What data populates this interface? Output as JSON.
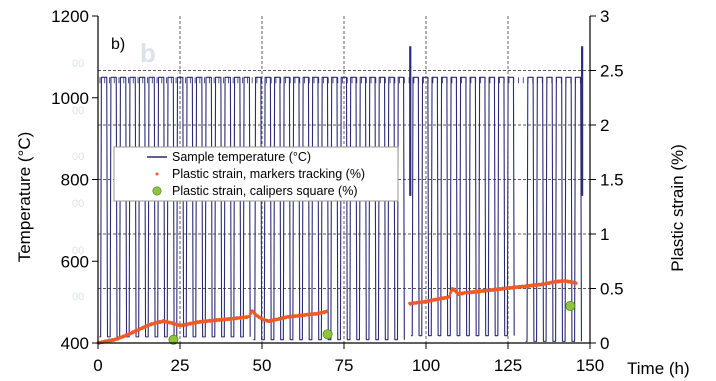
{
  "chart_data": {
    "type": "line",
    "panel_label": "b)",
    "background_ghost_text": [
      "b",
      "00",
      "00",
      "00",
      "00",
      "00",
      "00"
    ],
    "x_axis": {
      "label": "Time (h)",
      "range": [
        0,
        150
      ],
      "ticks": [
        "0",
        "25",
        "50",
        "75",
        "100",
        "125",
        "150"
      ]
    },
    "y_left": {
      "label": "Temperature (°C)",
      "range": [
        400,
        1200
      ],
      "ticks": [
        "400",
        "600",
        "800",
        "1000",
        "1200"
      ]
    },
    "y_right": {
      "label": "Plastic strain (%)",
      "range": [
        0,
        3
      ],
      "ticks": [
        "0",
        "0.5",
        "1",
        "1.5",
        "2",
        "2.5",
        "3"
      ]
    },
    "legend": {
      "placement": "middle-left",
      "entries": [
        {
          "label": "Sample temperature (°C)",
          "marker": "line",
          "color": "#2b2c75"
        },
        {
          "label": "Plastic strain, markers tracking (%)",
          "marker": "dot",
          "color": "#ef5a2b"
        },
        {
          "label": "Plastic strain, calipers square (%)",
          "marker": "circle",
          "color": "#8cc63f"
        }
      ]
    },
    "grid": {
      "x_major": [
        25,
        50,
        75,
        100,
        125
      ],
      "y_right_major": [
        0.5,
        1,
        1.5,
        2,
        2.5
      ],
      "style": "dashed"
    },
    "series": [
      {
        "name": "Sample temperature (°C)",
        "axis": "left",
        "color": "#2b2c75",
        "cycle_period_h": 2.9,
        "high_value": 1050,
        "low_values_by_segment": [
          {
            "x": [
              0,
              47
            ],
            "low": 415
          },
          {
            "x": [
              47,
              95
            ],
            "low": 408
          },
          {
            "x": [
              95,
              130
            ],
            "low": 418
          },
          {
            "x": [
              130,
              148
            ],
            "low": 404
          }
        ],
        "peaks": [
          {
            "x": 95.2,
            "value": 1126
          },
          {
            "x": 147.6,
            "value": 1126
          }
        ]
      },
      {
        "name": "Plastic strain, markers tracking (%)",
        "axis": "right",
        "color": "#ef5a2b",
        "x": [
          0,
          3,
          5,
          7,
          10,
          13,
          15,
          17,
          20,
          23,
          25,
          27,
          30,
          33,
          36,
          40,
          43,
          46,
          47,
          48,
          50,
          52,
          55,
          58,
          61,
          64,
          67,
          70,
          95,
          97,
          100,
          103,
          105,
          107,
          108,
          110,
          112,
          115,
          118,
          121,
          124,
          127,
          130,
          133,
          136,
          139,
          142,
          144,
          146
        ],
        "y": [
          0.0,
          0.02,
          0.03,
          0.05,
          0.09,
          0.13,
          0.16,
          0.18,
          0.2,
          0.18,
          0.16,
          0.17,
          0.19,
          0.2,
          0.21,
          0.22,
          0.23,
          0.24,
          0.3,
          0.26,
          0.22,
          0.2,
          0.22,
          0.24,
          0.25,
          0.26,
          0.27,
          0.29,
          0.36,
          0.37,
          0.38,
          0.4,
          0.41,
          0.42,
          0.5,
          0.45,
          0.46,
          0.47,
          0.48,
          0.49,
          0.5,
          0.51,
          0.52,
          0.53,
          0.54,
          0.56,
          0.57,
          0.56,
          0.55
        ]
      },
      {
        "name": "Plastic strain, calipers square (%)",
        "axis": "right",
        "color": "#8cc63f",
        "x": [
          23,
          70,
          144
        ],
        "y": [
          0.03,
          0.08,
          0.34
        ]
      }
    ]
  }
}
